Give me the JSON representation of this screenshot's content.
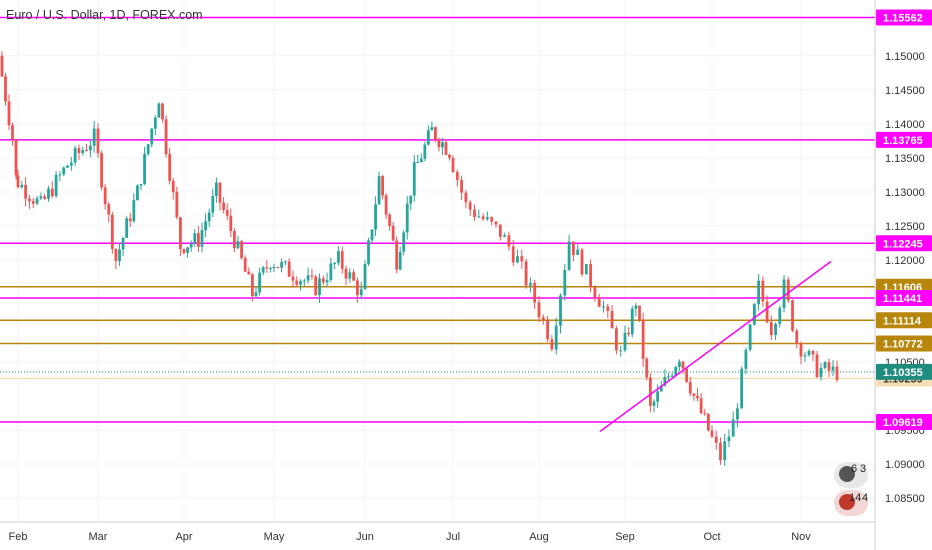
{
  "header": {
    "title": "Euro / U.S. Dollar, 1D, FOREX.com"
  },
  "badges": [
    {
      "a": "6",
      "b": "3"
    },
    {
      "a": "14",
      "b": "4"
    }
  ],
  "chart_data": {
    "type": "candlestick",
    "symbol": "Euro / U.S. Dollar",
    "interval": "1D",
    "source": "FOREX.com",
    "x_ticks": [
      "Feb",
      "Mar",
      "Apr",
      "May",
      "Jun",
      "Jul",
      "Aug",
      "Sep",
      "Oct",
      "Nov"
    ],
    "y_ticks": [
      "1.15000",
      "1.14500",
      "1.14000",
      "1.13500",
      "1.13000",
      "1.12500",
      "1.12000",
      "1.10500",
      "1.09500",
      "1.09000",
      "1.08500"
    ],
    "y_range": [
      1.0815,
      1.1582
    ],
    "horizontal_levels": [
      {
        "value": "1.15562",
        "color": "#ff00ff"
      },
      {
        "value": "1.13765",
        "color": "#ff00ff"
      },
      {
        "value": "1.12245",
        "color": "#ff00ff"
      },
      {
        "value": "1.11606",
        "color": "#b8860b"
      },
      {
        "value": "1.11441",
        "color": "#ff00ff"
      },
      {
        "value": "1.11114",
        "color": "#b8860b"
      },
      {
        "value": "1.10772",
        "color": "#b8860b"
      },
      {
        "value": "1.10259",
        "color": "#f5deb3"
      },
      {
        "value": "1.09619",
        "color": "#ff00ff"
      }
    ],
    "current_price": {
      "value": "1.10355",
      "color": "#1e8c7e"
    },
    "trendline": {
      "from": [
        "Sep",
        1.0948
      ],
      "to": [
        "Nov",
        1.1198
      ],
      "color": "#ff00ff"
    },
    "colors": {
      "up": "#26a69a",
      "down": "#ef5350"
    },
    "anchors": [
      [
        "Jan",
        1.15
      ],
      [
        "Jan",
        1.138
      ],
      [
        "Feb",
        1.132
      ],
      [
        "Feb",
        1.128
      ],
      [
        "Feb",
        1.134
      ],
      [
        "Mar",
        1.138
      ],
      [
        "Mar",
        1.12
      ],
      [
        "Mar",
        1.13
      ],
      [
        "Mar",
        1.144
      ],
      [
        "Apr",
        1.122
      ],
      [
        "Apr",
        1.123
      ],
      [
        "Apr",
        1.13
      ],
      [
        "Apr",
        1.123
      ],
      [
        "Apr",
        1.115
      ],
      [
        "May",
        1.12
      ],
      [
        "May",
        1.118
      ],
      [
        "May",
        1.116
      ],
      [
        "May",
        1.12
      ],
      [
        "Jun",
        1.115
      ],
      [
        "Jun",
        1.132
      ],
      [
        "Jun",
        1.12
      ],
      [
        "Jun",
        1.133
      ],
      [
        "Jun",
        1.139
      ],
      [
        "Jul",
        1.136
      ],
      [
        "Jul",
        1.128
      ],
      [
        "Jul",
        1.126
      ],
      [
        "Jul",
        1.124
      ],
      [
        "Jul",
        1.12
      ],
      [
        "Aug",
        1.114
      ],
      [
        "Aug",
        1.108
      ],
      [
        "Aug",
        1.123
      ],
      [
        "Aug",
        1.118
      ],
      [
        "Aug",
        1.113
      ],
      [
        "Sep",
        1.106
      ],
      [
        "Sep",
        1.114
      ],
      [
        "Sep",
        1.098
      ],
      [
        "Sep",
        1.102
      ],
      [
        "Sep",
        1.106
      ],
      [
        "Sep",
        1.1
      ],
      [
        "Oct",
        1.095
      ],
      [
        "Oct",
        1.091
      ],
      [
        "Oct",
        1.096
      ],
      [
        "Oct",
        1.106
      ],
      [
        "Oct",
        1.116
      ],
      [
        "Oct",
        1.11
      ],
      [
        "Oct",
        1.116
      ],
      [
        "Nov",
        1.108
      ],
      [
        "Nov",
        1.104
      ],
      [
        "Nov",
        1.1035
      ]
    ]
  }
}
